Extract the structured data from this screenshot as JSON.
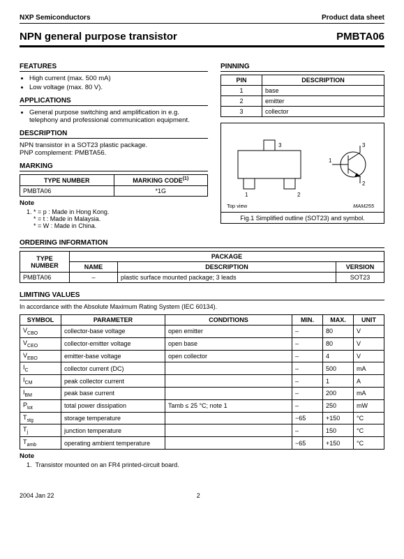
{
  "header": {
    "company": "NXP Semiconductors",
    "doctype": "Product data sheet"
  },
  "title": {
    "main": "NPN general purpose transistor",
    "part": "PMBTA06"
  },
  "features": {
    "heading": "FEATURES",
    "items": [
      "High current (max. 500 mA)",
      "Low voltage (max. 80 V)."
    ]
  },
  "applications": {
    "heading": "APPLICATIONS",
    "items": [
      "General purpose switching and amplification in e.g. telephony and professional communication equipment."
    ]
  },
  "description": {
    "heading": "DESCRIPTION",
    "line1": "NPN transistor in a SOT23 plastic package.",
    "line2": "PNP complement: PMBTA56."
  },
  "marking": {
    "heading": "MARKING",
    "col1": "TYPE NUMBER",
    "col2": "MARKING CODE",
    "sup": "(1)",
    "type": "PMBTA06",
    "code": "*1G",
    "note_h": "Note",
    "note_num": "1.",
    "note_l1": "* = p : Made in Hong Kong.",
    "note_l2": "* = t : Made in Malaysia.",
    "note_l3": "* = W : Made in China."
  },
  "pinning": {
    "heading": "PINNING",
    "col1": "PIN",
    "col2": "DESCRIPTION",
    "rows": [
      [
        "1",
        "base"
      ],
      [
        "2",
        "emitter"
      ],
      [
        "3",
        "collector"
      ]
    ]
  },
  "figure": {
    "topview": "Top view",
    "code": "MAM255",
    "caption": "Fig.1  Simplified outline (SOT23) and symbol."
  },
  "ordering": {
    "heading": "ORDERING INFORMATION",
    "h_type": "TYPE NUMBER",
    "h_pkg": "PACKAGE",
    "h_name": "NAME",
    "h_desc": "DESCRIPTION",
    "h_ver": "VERSION",
    "type": "PMBTA06",
    "name": "–",
    "desc": "plastic surface mounted package; 3 leads",
    "ver": "SOT23"
  },
  "limiting": {
    "heading": "LIMITING VALUES",
    "intro": "In accordance with the Absolute Maximum Rating System (IEC 60134).",
    "h_sym": "SYMBOL",
    "h_par": "PARAMETER",
    "h_cond": "CONDITIONS",
    "h_min": "MIN.",
    "h_max": "MAX.",
    "h_unit": "UNIT",
    "rows": [
      {
        "s": "V",
        "sub": "CBO",
        "p": "collector-base voltage",
        "c": "open emitter",
        "min": "–",
        "max": "80",
        "u": "V"
      },
      {
        "s": "V",
        "sub": "CEO",
        "p": "collector-emitter voltage",
        "c": "open base",
        "min": "–",
        "max": "80",
        "u": "V"
      },
      {
        "s": "V",
        "sub": "EBO",
        "p": "emitter-base voltage",
        "c": "open collector",
        "min": "–",
        "max": "4",
        "u": "V"
      },
      {
        "s": "I",
        "sub": "C",
        "p": "collector current (DC)",
        "c": "",
        "min": "–",
        "max": "500",
        "u": "mA"
      },
      {
        "s": "I",
        "sub": "CM",
        "p": "peak collector current",
        "c": "",
        "min": "–",
        "max": "1",
        "u": "A"
      },
      {
        "s": "I",
        "sub": "BM",
        "p": "peak base current",
        "c": "",
        "min": "–",
        "max": "200",
        "u": "mA"
      },
      {
        "s": "P",
        "sub": "tot",
        "p": "total power dissipation",
        "c": "Tamb ≤ 25 °C; note 1",
        "min": "–",
        "max": "250",
        "u": "mW"
      },
      {
        "s": "T",
        "sub": "stg",
        "p": "storage temperature",
        "c": "",
        "min": "−65",
        "max": "+150",
        "u": "°C"
      },
      {
        "s": "T",
        "sub": "j",
        "p": "junction temperature",
        "c": "",
        "min": "–",
        "max": "150",
        "u": "°C"
      },
      {
        "s": "T",
        "sub": "amb",
        "p": "operating ambient temperature",
        "c": "",
        "min": "−65",
        "max": "+150",
        "u": "°C"
      }
    ],
    "note_h": "Note",
    "note1_num": "1.",
    "note1": "Transistor mounted on an FR4 printed-circuit board."
  },
  "footer": {
    "date": "2004 Jan 22",
    "page": "2"
  }
}
